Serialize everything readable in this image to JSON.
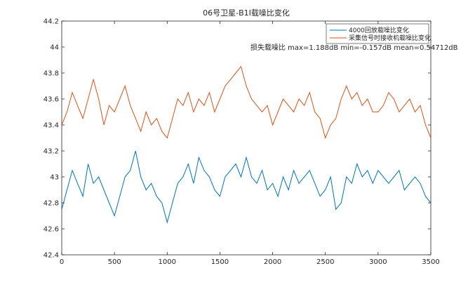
{
  "chart_data": {
    "type": "line",
    "title": "06号卫星-B1I载噪比变化",
    "xlabel": "",
    "ylabel": "",
    "xlim": [
      0,
      3500
    ],
    "ylim": [
      42.4,
      44.2
    ],
    "xticks": [
      0,
      500,
      1000,
      1500,
      2000,
      2500,
      3000,
      3500
    ],
    "yticks": [
      42.4,
      42.6,
      42.8,
      43,
      43.2,
      43.4,
      43.6,
      43.8,
      44,
      44.2
    ],
    "xtick_labels": [
      "0",
      "500",
      "1000",
      "1500",
      "2000",
      "2500",
      "3000",
      "3500"
    ],
    "ytick_labels": [
      "42.4",
      "42.6",
      "42.8",
      "43",
      "43.2",
      "43.4",
      "43.6",
      "43.8",
      "44",
      "44.2"
    ],
    "grid": false,
    "legend_position": "top-right",
    "annotation": "损失载噪比 max=1.188dB min=-0.157dB mean=0.54712dB",
    "series": [
      {
        "name": "4000回放载噪比变化",
        "color": "#0072BD",
        "x": [
          0,
          50,
          100,
          150,
          200,
          250,
          300,
          350,
          400,
          450,
          500,
          550,
          600,
          650,
          700,
          750,
          800,
          850,
          900,
          950,
          1000,
          1050,
          1100,
          1150,
          1200,
          1250,
          1300,
          1350,
          1400,
          1450,
          1500,
          1550,
          1600,
          1650,
          1700,
          1750,
          1800,
          1850,
          1900,
          1950,
          2000,
          2050,
          2100,
          2150,
          2200,
          2250,
          2300,
          2350,
          2400,
          2450,
          2500,
          2550,
          2600,
          2650,
          2700,
          2750,
          2800,
          2850,
          2900,
          2950,
          3000,
          3050,
          3100,
          3150,
          3200,
          3250,
          3300,
          3350,
          3400,
          3450,
          3500
        ],
        "y": [
          42.75,
          42.9,
          43.05,
          42.95,
          42.85,
          43.1,
          42.95,
          43.0,
          42.9,
          42.8,
          42.7,
          42.85,
          43.0,
          43.05,
          43.2,
          43.0,
          42.9,
          42.95,
          42.85,
          42.8,
          42.65,
          42.8,
          42.95,
          43.0,
          43.1,
          42.95,
          43.15,
          43.05,
          43.0,
          42.9,
          42.85,
          43.0,
          43.05,
          43.1,
          43.0,
          43.15,
          43.0,
          42.95,
          43.05,
          42.9,
          42.95,
          42.85,
          43.0,
          42.9,
          43.05,
          42.95,
          43.0,
          43.05,
          42.95,
          42.85,
          42.9,
          43.0,
          42.75,
          42.8,
          43.0,
          42.95,
          43.1,
          43.0,
          43.05,
          42.95,
          43.05,
          43.0,
          42.95,
          43.0,
          43.05,
          42.9,
          42.95,
          43.0,
          42.95,
          42.85,
          42.8
        ]
      },
      {
        "name": "采集信号时接收机载噪比变化",
        "color": "#D95319",
        "x": [
          0,
          50,
          100,
          150,
          200,
          250,
          300,
          350,
          400,
          450,
          500,
          550,
          600,
          650,
          700,
          750,
          800,
          850,
          900,
          950,
          1000,
          1050,
          1100,
          1150,
          1200,
          1250,
          1300,
          1350,
          1400,
          1450,
          1500,
          1550,
          1600,
          1650,
          1700,
          1750,
          1800,
          1850,
          1900,
          1950,
          2000,
          2050,
          2100,
          2150,
          2200,
          2250,
          2300,
          2350,
          2400,
          2450,
          2500,
          2550,
          2600,
          2650,
          2700,
          2750,
          2800,
          2850,
          2900,
          2950,
          3000,
          3050,
          3100,
          3150,
          3200,
          3250,
          3300,
          3350,
          3400,
          3450,
          3500
        ],
        "y": [
          43.4,
          43.5,
          43.65,
          43.55,
          43.45,
          43.6,
          43.75,
          43.6,
          43.4,
          43.55,
          43.5,
          43.6,
          43.7,
          43.55,
          43.45,
          43.35,
          43.5,
          43.4,
          43.45,
          43.35,
          43.3,
          43.45,
          43.6,
          43.55,
          43.65,
          43.5,
          43.6,
          43.55,
          43.65,
          43.5,
          43.6,
          43.7,
          43.75,
          43.8,
          43.85,
          43.7,
          43.6,
          43.55,
          43.5,
          43.55,
          43.4,
          43.5,
          43.6,
          43.55,
          43.5,
          43.6,
          43.55,
          43.65,
          43.5,
          43.45,
          43.3,
          43.4,
          43.45,
          43.6,
          43.7,
          43.6,
          43.65,
          43.55,
          43.6,
          43.5,
          43.5,
          43.55,
          43.65,
          43.6,
          43.5,
          43.55,
          43.6,
          43.5,
          43.55,
          43.4,
          43.3
        ]
      }
    ]
  }
}
